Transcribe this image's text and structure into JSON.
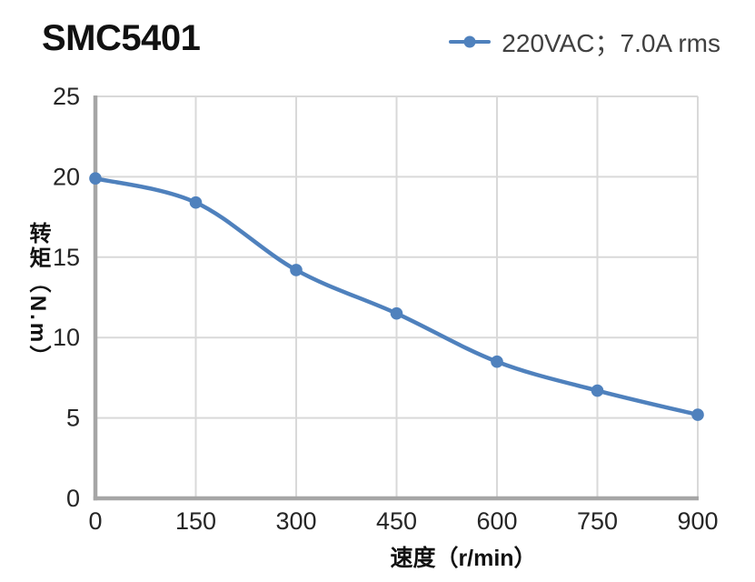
{
  "title": "SMC5401",
  "legend": {
    "label": "220VAC；7.0A rms"
  },
  "chart_data": {
    "type": "line",
    "title": "SMC5401",
    "xlabel": "速度（r/min）",
    "ylabel": "转矩（N.m）",
    "xlim": [
      0,
      900
    ],
    "ylim": [
      0,
      25
    ],
    "xticks": [
      0,
      150,
      300,
      450,
      600,
      750,
      900
    ],
    "yticks": [
      0,
      5,
      10,
      15,
      20,
      25
    ],
    "grid": true,
    "legend_position": "top-right",
    "series": [
      {
        "name": "220VAC；7.0A rms",
        "x": [
          0,
          150,
          300,
          450,
          600,
          750,
          900
        ],
        "values": [
          19.9,
          18.4,
          14.2,
          11.5,
          8.5,
          6.7,
          5.2
        ],
        "color": "#4f81bd",
        "marker": "circle",
        "smooth": true
      }
    ],
    "colors": {
      "grid": "#d9d9d9",
      "axis": "#a6a6a6",
      "tick_label": "#262626",
      "title_text": "#111111",
      "legend_text": "#404040"
    }
  }
}
